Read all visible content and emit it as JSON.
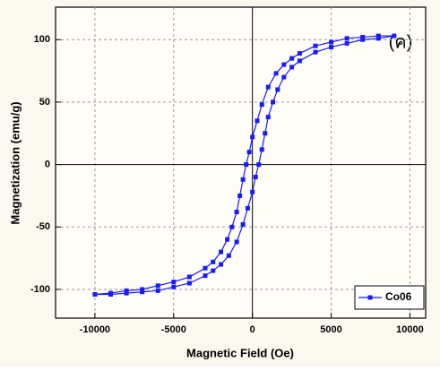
{
  "chart_data": {
    "type": "line",
    "annotation": "(ค)",
    "x_label": "Magnetic Field (Oe)",
    "y_label": "Magnetization (emu/g)",
    "xlim": [
      -12500,
      11000
    ],
    "ylim": [
      -123,
      126
    ],
    "xticks": [
      -10000,
      -5000,
      0,
      5000,
      10000
    ],
    "yticks": [
      -100,
      -50,
      0,
      50,
      100
    ],
    "grid": true,
    "legend": "lower-right",
    "series": [
      {
        "name": "Co06",
        "color": "#1a1aff",
        "x": [
          -10000,
          -9000,
          -8000,
          -7000,
          -6000,
          -5000,
          -4000,
          -3000,
          -2500,
          -2000,
          -1500,
          -1000,
          -600,
          -300,
          0,
          200,
          400,
          600,
          800,
          1000,
          1300,
          1600,
          2000,
          2500,
          3000,
          4000,
          5000,
          6000,
          7000,
          8000,
          9000,
          8000,
          7000,
          6000,
          5000,
          4000,
          3000,
          2500,
          2000,
          1500,
          1000,
          600,
          300,
          0,
          -200,
          -400,
          -600,
          -800,
          -1000,
          -1300,
          -1600,
          -2000,
          -2500,
          -3000,
          -4000,
          -5000,
          -6000,
          -7000,
          -8000,
          -9000,
          -10000
        ],
        "values": [
          -104,
          -104,
          -103,
          -102,
          -101,
          -98,
          -95,
          -89,
          -85,
          -80,
          -73,
          -62,
          -48,
          -35,
          -22,
          -10,
          0,
          12,
          25,
          38,
          50,
          60,
          70,
          78,
          83,
          90,
          94,
          97,
          100,
          101,
          103,
          103,
          102,
          101,
          98,
          95,
          89,
          85,
          80,
          73,
          62,
          48,
          35,
          22,
          10,
          0,
          -12,
          -25,
          -38,
          -50,
          -60,
          -70,
          -78,
          -83,
          -90,
          -94,
          -97,
          -100,
          -101,
          -103,
          -104
        ]
      }
    ]
  }
}
